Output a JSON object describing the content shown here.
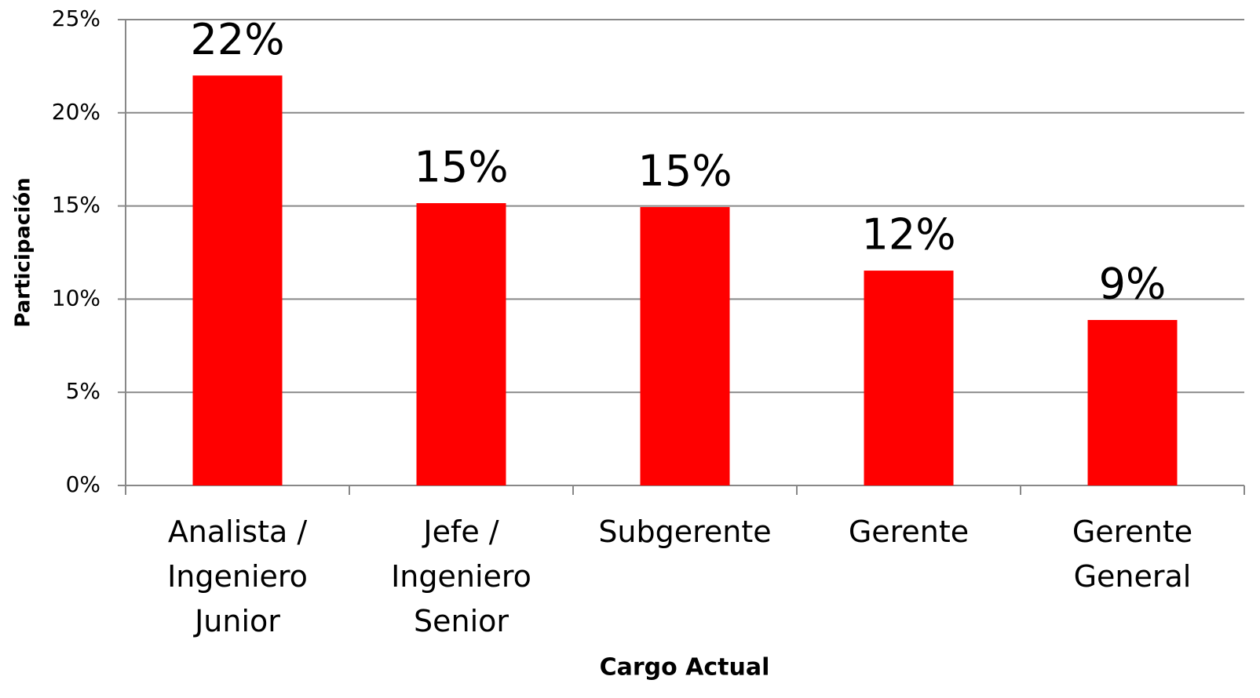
{
  "chart_data": {
    "type": "bar",
    "categories": [
      "Analista / Ingeniero Junior",
      "Jefe / Ingeniero Senior",
      "Subgerente",
      "Gerente",
      "Gerente General"
    ],
    "values": [
      22,
      15.15,
      14.94,
      11.53,
      8.88
    ],
    "value_labels": [
      "22%",
      "15%",
      "15%",
      "12%",
      "9%"
    ],
    "color": "#ff0000",
    "ylim": [
      0,
      25
    ],
    "yticks": [
      {
        "value": 0,
        "label": "0%"
      },
      {
        "value": 5,
        "label": "5%"
      },
      {
        "value": 10,
        "label": "10%"
      },
      {
        "value": 15,
        "label": "15%"
      },
      {
        "value": 20,
        "label": "20%"
      },
      {
        "value": 25,
        "label": "25%"
      }
    ],
    "grid": true,
    "x_label": "Cargo Actual",
    "y_label": "Participación"
  }
}
